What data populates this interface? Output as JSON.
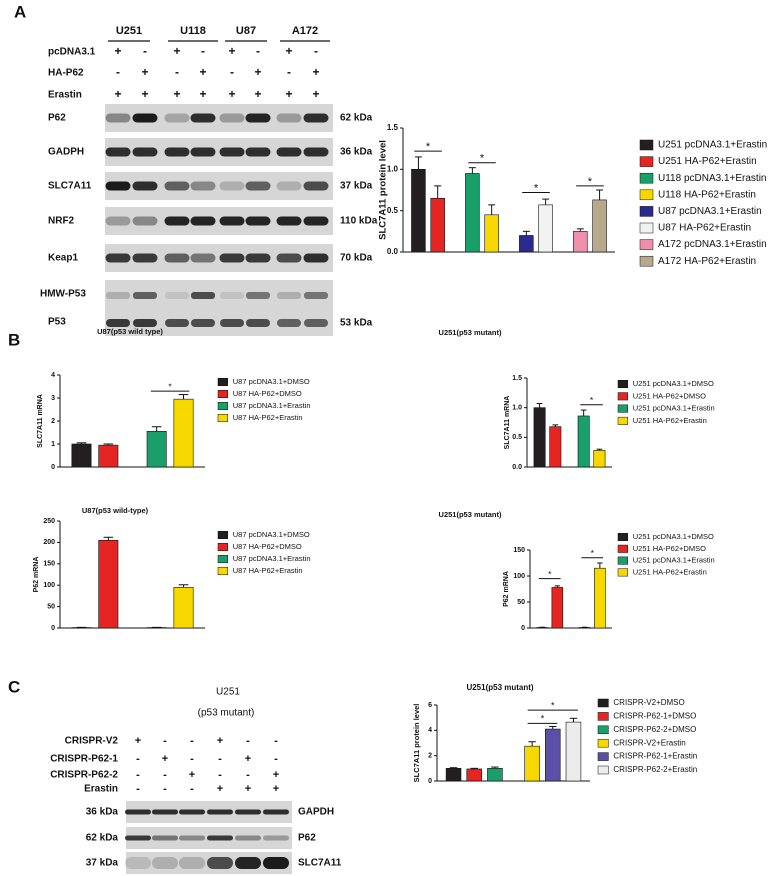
{
  "panel_a": {
    "label": "A",
    "cell_lines": [
      "U251",
      "U118",
      "U87",
      "A172"
    ],
    "treatments": [
      {
        "name": "pcDNA3.1",
        "signs": [
          "+",
          "-",
          "+",
          "-",
          "+",
          "-",
          "+",
          "-"
        ]
      },
      {
        "name": "HA-P62",
        "signs": [
          "-",
          "+",
          "-",
          "+",
          "-",
          "+",
          "-",
          "+"
        ]
      },
      {
        "name": "Erastin",
        "signs": [
          "+",
          "+",
          "+",
          "+",
          "+",
          "+",
          "+",
          "+"
        ]
      }
    ],
    "blots": [
      {
        "name": "P62",
        "size": "62 kDa"
      },
      {
        "name": "GADPH",
        "size": "36 kDa"
      },
      {
        "name": "SLC7A11",
        "size": "37 kDa"
      },
      {
        "name": "NRF2",
        "size": "110 kDa"
      },
      {
        "name": "Keap1",
        "size": "70 kDa"
      }
    ],
    "p53_blot": {
      "labels": [
        "HMW-P53",
        "P53"
      ],
      "size": "53 kDa"
    }
  },
  "panel_b": {
    "label": "B"
  },
  "panel_c": {
    "label": "C",
    "title": "U251",
    "subtitle": "(p53 mutant)",
    "treatments": [
      {
        "name": "CRISPR-V2",
        "signs": [
          "+",
          "-",
          "-",
          "+",
          "-",
          "-"
        ]
      },
      {
        "name": "CRISPR-P62-1",
        "signs": [
          "-",
          "+",
          "-",
          "-",
          "+",
          "-"
        ]
      },
      {
        "name": "CRISPR-P62-2",
        "signs": [
          "-",
          "-",
          "+",
          "-",
          "-",
          "+"
        ]
      },
      {
        "name": "Erastin",
        "signs": [
          "-",
          "-",
          "-",
          "+",
          "+",
          "+"
        ]
      }
    ],
    "blots": [
      {
        "name": "GAPDH",
        "size": "36 kDa"
      },
      {
        "name": "P62",
        "size": "62 kDa"
      },
      {
        "name": "SLC7A11",
        "size": "37 kDa"
      }
    ]
  },
  "chart_data": [
    {
      "type": "bar",
      "ylabel": "SLC7A11 protein level",
      "categories": [
        "U251 pcDNA3.1+Erastin",
        "U251 HA-P62+Erastin",
        "U118 pcDNA3.1+Erastin",
        "U118 HA-P62+Erastin",
        "U87 pcDNA3.1+Erastin",
        "U87 HA-P62+Erastin",
        "A172 pcDNA3.1+Erastin",
        "A172 HA-P62+Erastin"
      ],
      "values": [
        1.0,
        0.65,
        0.95,
        0.45,
        0.2,
        0.57,
        0.25,
        0.63
      ],
      "errors": [
        0.15,
        0.15,
        0.07,
        0.12,
        0.05,
        0.07,
        0.03,
        0.12
      ],
      "colors": [
        "#231f20",
        "#e52521",
        "#1a9e6a",
        "#f6d800",
        "#2b2a8f",
        "#f2f2f2",
        "#f08fab",
        "#b7a98a"
      ],
      "ylim": [
        0,
        1.5
      ],
      "yticks": [
        {
          "value": 0,
          "label": "0.0"
        },
        {
          "value": 0.5,
          "label": "0.5"
        },
        {
          "value": 1,
          "label": "1.0"
        },
        {
          "value": 1.5,
          "label": "1.5"
        }
      ],
      "annotations": [
        "*",
        "*",
        "*",
        "*"
      ]
    },
    {
      "type": "bar",
      "title": "U87(p53 wild type)",
      "ylabel": "SLC7A11 mRNA",
      "categories": [
        "U87 pcDNA3.1+DMSO",
        "U87 HA-P62+DMSO",
        "U87 pcDNA3.1+Erastin",
        "U87 HA-P62+Erastin"
      ],
      "values": [
        1.0,
        0.95,
        1.55,
        2.95
      ],
      "errors": [
        0.05,
        0.05,
        0.2,
        0.2
      ],
      "colors": [
        "#231f20",
        "#e52521",
        "#1a9e6a",
        "#f6d800"
      ],
      "ylim": [
        0,
        4
      ],
      "yticks": [
        0,
        1,
        2,
        3,
        4
      ],
      "annotations": [
        "*"
      ]
    },
    {
      "type": "bar",
      "title": "U251(p53 mutant)",
      "ylabel": "SLC7A11 mRNA",
      "categories": [
        "U251 pcDNA3.1+DMSO",
        "U251 HA-P62+DMSO",
        "U251 pcDNA3.1+Erastin",
        "U251 HA-P62+Erastin"
      ],
      "values": [
        1.0,
        0.68,
        0.86,
        0.28
      ],
      "errors": [
        0.07,
        0.03,
        0.1,
        0.02
      ],
      "colors": [
        "#231f20",
        "#e52521",
        "#1a9e6a",
        "#f6d800"
      ],
      "ylim": [
        0,
        1.5
      ],
      "yticks": [
        {
          "value": 0,
          "label": "0.0"
        },
        {
          "value": 0.5,
          "label": "0.5"
        },
        {
          "value": 1,
          "label": "1.0"
        },
        {
          "value": 1.5,
          "label": "1.5"
        }
      ],
      "annotations": [
        "*"
      ]
    },
    {
      "type": "bar",
      "title": "U87(p53 wild-type)",
      "ylabel": "P62 mRNA",
      "categories": [
        "U87 pcDNA3.1+DMSO",
        "U87 HA-P62+DMSO",
        "U87 pcDNA3.1+Erastin",
        "U87 HA-P62+Erastin"
      ],
      "values": [
        1,
        205,
        1,
        95
      ],
      "errors": [
        0.5,
        7,
        0.5,
        6
      ],
      "colors": [
        "#231f20",
        "#e52521",
        "#1a9e6a",
        "#f6d800"
      ],
      "ylim": [
        0,
        250
      ],
      "yticks": [
        0,
        50,
        100,
        150,
        200,
        250
      ],
      "annotations": []
    },
    {
      "type": "bar",
      "title": "U251(p53 mutant)",
      "ylabel": "P62 mRNA",
      "categories": [
        "U251 pcDNA3.1+DMSO",
        "U251 HA-P62+DMSO",
        "U251 pcDNA3.1+Erastin",
        "U251 HA-P62+Erastin"
      ],
      "values": [
        1,
        78,
        1,
        115
      ],
      "errors": [
        0.5,
        3,
        0.5,
        10
      ],
      "colors": [
        "#231f20",
        "#e52521",
        "#1a9e6a",
        "#f6d800"
      ],
      "ylim": [
        0,
        150
      ],
      "yticks": [
        0,
        50,
        100,
        150
      ],
      "annotations": [
        "*",
        "*"
      ]
    },
    {
      "type": "bar",
      "title": "U251(p53 mutant)",
      "ylabel": "SLC7A11 protein level",
      "categories": [
        "CRISPR-V2+DMSO",
        "CRISPR-P62-1+DMSO",
        "CRISPR-P62-2+DMSO",
        "CRISPR-V2+Erastin",
        "CRISPR-P62-1+Erastin",
        "CRISPR-P62-2+Erastin"
      ],
      "values": [
        1.0,
        0.95,
        1.0,
        2.75,
        4.1,
        4.65
      ],
      "errors": [
        0.05,
        0.05,
        0.1,
        0.35,
        0.2,
        0.3
      ],
      "colors": [
        "#231f20",
        "#e52521",
        "#1a9e6a",
        "#f6d800",
        "#5b4fa8",
        "#ececec"
      ],
      "ylim": [
        0,
        6
      ],
      "yticks": [
        0,
        2,
        4,
        6
      ],
      "annotations": [
        "*",
        "*"
      ]
    }
  ]
}
